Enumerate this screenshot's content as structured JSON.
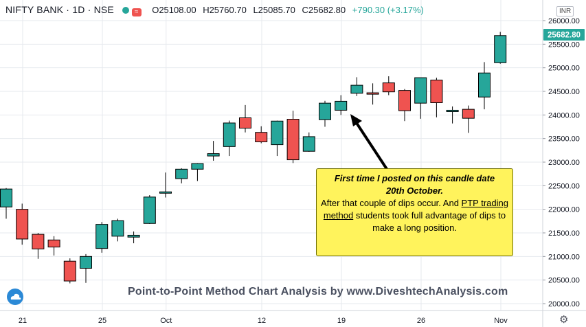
{
  "header": {
    "symbol": "NIFTY BANK · 1D · NSE",
    "open": "O25108.00",
    "high": "H25760.70",
    "low": "L25085.70",
    "close": "C25682.80",
    "change": "+790.30 (+3.17%)",
    "wave_glyph": "≈"
  },
  "currency_badge": "INR",
  "price_badge": "25682.80",
  "annotation": {
    "line1": "First time I posted on this candle date",
    "line2": "20th October.",
    "line3": "After that couple of dips occur. And",
    "link_text": "PTP trading method",
    "line4": "students took full advantage of dips to make a long position."
  },
  "watermark": "Point-to-Point Method Chart Analysis by www.DiveshtechAnalysis.com",
  "colors": {
    "up": "#26a69a",
    "down": "#ef5350",
    "callout_bg": "#fff35c",
    "grid": "#e6e9ee"
  },
  "icons": {
    "settings": "gear-icon",
    "logo": "cloud-logo-icon"
  },
  "chart_data": {
    "type": "candlestick",
    "title": "NIFTY BANK · 1D · NSE",
    "ylim": [
      19900,
      26200
    ],
    "y_ticks": [
      20000,
      20500,
      21000,
      21500,
      22000,
      22500,
      23000,
      23500,
      24000,
      24500,
      25000,
      25500,
      26000
    ],
    "x_tick_labels": [
      "21",
      "25",
      "Oct",
      "12",
      "19",
      "26",
      "Nov"
    ],
    "grid": true,
    "candles": [
      {
        "o": 22050,
        "h": 22450,
        "l": 21800,
        "c": 22430
      },
      {
        "o": 22000,
        "h": 22120,
        "l": 21250,
        "c": 21370
      },
      {
        "o": 21470,
        "h": 21500,
        "l": 20950,
        "c": 21160
      },
      {
        "o": 21350,
        "h": 21430,
        "l": 21020,
        "c": 21200
      },
      {
        "o": 20900,
        "h": 20960,
        "l": 20430,
        "c": 20480
      },
      {
        "o": 20750,
        "h": 21050,
        "l": 20440,
        "c": 21000
      },
      {
        "o": 21170,
        "h": 21730,
        "l": 21080,
        "c": 21680
      },
      {
        "o": 21430,
        "h": 21800,
        "l": 21320,
        "c": 21760
      },
      {
        "o": 21410,
        "h": 21530,
        "l": 21280,
        "c": 21450
      },
      {
        "o": 21700,
        "h": 22300,
        "l": 21690,
        "c": 22260
      },
      {
        "o": 22350,
        "h": 22780,
        "l": 22250,
        "c": 22370
      },
      {
        "o": 22650,
        "h": 22870,
        "l": 22550,
        "c": 22850
      },
      {
        "o": 22850,
        "h": 22980,
        "l": 22600,
        "c": 22970
      },
      {
        "o": 23130,
        "h": 23450,
        "l": 23030,
        "c": 23180
      },
      {
        "o": 23330,
        "h": 23880,
        "l": 23130,
        "c": 23830
      },
      {
        "o": 23940,
        "h": 24210,
        "l": 23630,
        "c": 23720
      },
      {
        "o": 23630,
        "h": 23760,
        "l": 23400,
        "c": 23430
      },
      {
        "o": 23370,
        "h": 23880,
        "l": 23130,
        "c": 23870
      },
      {
        "o": 23910,
        "h": 24090,
        "l": 22980,
        "c": 23050
      },
      {
        "o": 23230,
        "h": 23630,
        "l": 23220,
        "c": 23540
      },
      {
        "o": 23900,
        "h": 24300,
        "l": 23750,
        "c": 24250
      },
      {
        "o": 24100,
        "h": 24420,
        "l": 24000,
        "c": 24290
      },
      {
        "o": 24460,
        "h": 24800,
        "l": 24400,
        "c": 24630
      },
      {
        "o": 24470,
        "h": 24670,
        "l": 24220,
        "c": 24440
      },
      {
        "o": 24680,
        "h": 24820,
        "l": 24420,
        "c": 24490
      },
      {
        "o": 24520,
        "h": 24550,
        "l": 23870,
        "c": 24090
      },
      {
        "o": 24250,
        "h": 24790,
        "l": 23920,
        "c": 24790
      },
      {
        "o": 24740,
        "h": 24790,
        "l": 23950,
        "c": 24260
      },
      {
        "o": 24080,
        "h": 24180,
        "l": 23820,
        "c": 24100
      },
      {
        "o": 24120,
        "h": 24200,
        "l": 23620,
        "c": 23930
      },
      {
        "o": 24380,
        "h": 25120,
        "l": 24120,
        "c": 24890
      },
      {
        "o": 25108,
        "h": 25760.7,
        "l": 25085.7,
        "c": 25682.8
      }
    ]
  }
}
